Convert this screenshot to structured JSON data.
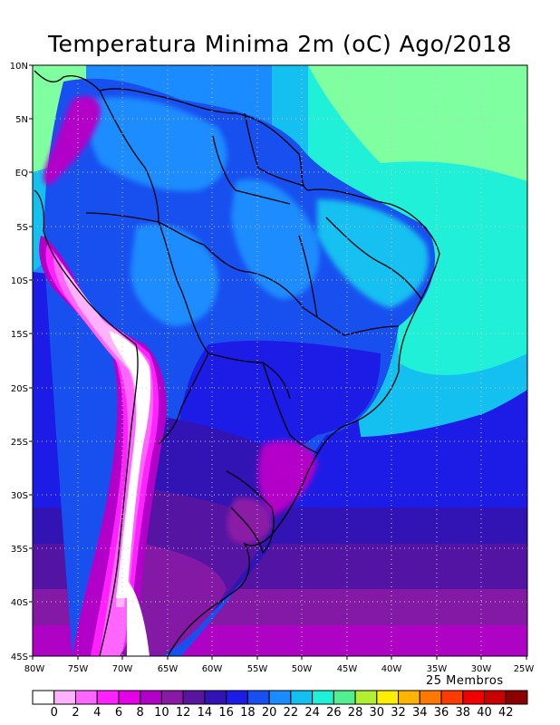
{
  "title": "Temperatura Minima 2m (oC) Ago/2018",
  "members_label": "25 Membros",
  "lat_labels": [
    "10N",
    "5N",
    "EQ",
    "5S",
    "10S",
    "15S",
    "20S",
    "25S",
    "30S",
    "35S",
    "40S",
    "45S"
  ],
  "lon_labels": [
    "80W",
    "75W",
    "70W",
    "65W",
    "60W",
    "55W",
    "50W",
    "45W",
    "40W",
    "35W",
    "30W",
    "25W"
  ],
  "legend": {
    "labels": [
      "0",
      "2",
      "4",
      "6",
      "8",
      "10",
      "12",
      "14",
      "16",
      "18",
      "20",
      "22",
      "24",
      "26",
      "28",
      "30",
      "32",
      "34",
      "36",
      "38",
      "40",
      "42"
    ],
    "colors": [
      "#ffffff",
      "#ffb3ff",
      "#ff66ff",
      "#ff22ff",
      "#e600e6",
      "#b300c8",
      "#8a1aa6",
      "#5a14a0",
      "#3214b4",
      "#1c1ce6",
      "#1850f0",
      "#1a8cff",
      "#14c0f0",
      "#20f0d8",
      "#50f090",
      "#b0f030",
      "#ffee00",
      "#ffb400",
      "#ff7800",
      "#ff3c00",
      "#f00000",
      "#c80000",
      "#8c0000"
    ]
  },
  "colors": {
    "ocean_warm": "#80ffa0",
    "ocean_aqua": "#40f0d0",
    "ocean_cyan": "#18c8f0",
    "ocean_blue": "#1a8cff",
    "continent_blue": "#2040f0",
    "andes_magenta": "#ff22ff"
  }
}
